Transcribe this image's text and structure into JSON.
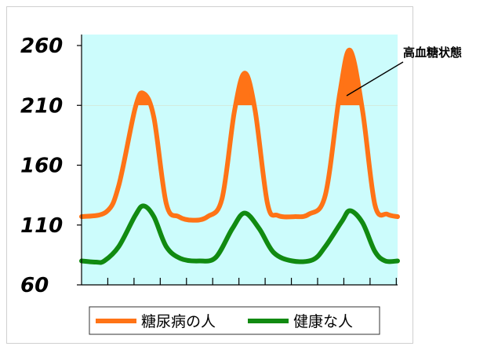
{
  "chart_data": {
    "type": "line",
    "title": "",
    "xlabel": "",
    "ylabel": "",
    "y_ticks": [
      "260",
      "210",
      "160",
      "110",
      "60"
    ],
    "ylim": [
      60,
      260
    ],
    "x_tick_count": 12,
    "grid": false,
    "background_color": "#ccfcfc",
    "threshold": 210,
    "annotation": "高血糖状態",
    "legend_placement": "bottom",
    "series": [
      {
        "name": "糖尿病の人",
        "color": "#ff7316",
        "fill_above_threshold_color": "#ff7316",
        "points": [
          [
            0,
            117
          ],
          [
            1.2,
            121
          ],
          [
            1.8,
            143
          ],
          [
            2.6,
            208
          ],
          [
            3.0,
            220
          ],
          [
            3.5,
            200
          ],
          [
            4.1,
            128
          ],
          [
            4.7,
            117
          ],
          [
            5.4,
            114
          ],
          [
            6.1,
            117
          ],
          [
            6.8,
            132
          ],
          [
            7.4,
            205
          ],
          [
            7.9,
            237
          ],
          [
            8.4,
            206
          ],
          [
            9.0,
            128
          ],
          [
            9.5,
            118
          ],
          [
            10.3,
            117
          ],
          [
            11.0,
            119
          ],
          [
            11.8,
            135
          ],
          [
            12.5,
            220
          ],
          [
            13.0,
            256
          ],
          [
            13.6,
            206
          ],
          [
            14.2,
            127
          ],
          [
            14.8,
            119
          ],
          [
            15.3,
            117
          ]
        ]
      },
      {
        "name": "健康な人",
        "color": "#118a11",
        "points": [
          [
            0,
            80
          ],
          [
            0.7,
            79
          ],
          [
            1.1,
            80
          ],
          [
            1.8,
            92
          ],
          [
            2.6,
            118
          ],
          [
            3.0,
            126
          ],
          [
            3.5,
            117
          ],
          [
            4.1,
            92
          ],
          [
            4.8,
            82
          ],
          [
            5.7,
            80
          ],
          [
            6.5,
            83
          ],
          [
            7.3,
            107
          ],
          [
            7.9,
            120
          ],
          [
            8.6,
            107
          ],
          [
            9.3,
            87
          ],
          [
            10.2,
            80
          ],
          [
            11.2,
            81
          ],
          [
            11.8,
            92
          ],
          [
            12.6,
            113
          ],
          [
            13.0,
            122
          ],
          [
            13.6,
            112
          ],
          [
            14.2,
            88
          ],
          [
            14.7,
            80
          ],
          [
            15.3,
            80
          ]
        ]
      }
    ]
  }
}
